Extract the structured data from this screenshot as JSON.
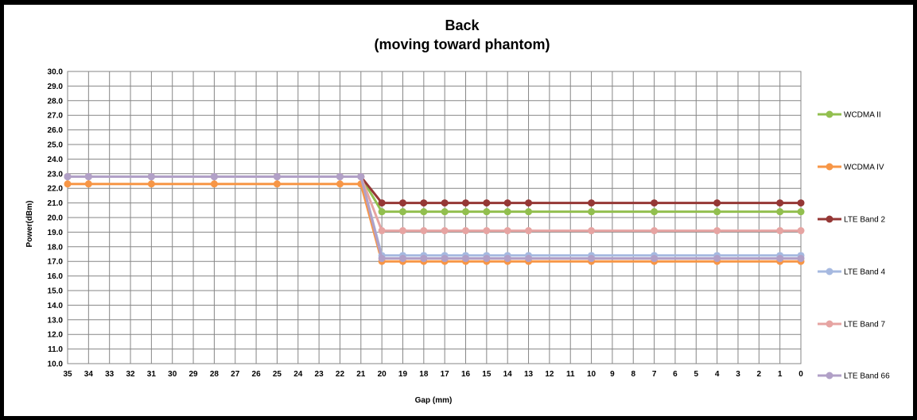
{
  "chart_data": {
    "type": "line",
    "title_line1": "Back",
    "title_line2": "(moving toward phantom)",
    "xlabel": "Gap (mm)",
    "ylabel": "Power(dBm)",
    "x_ticks": [
      35,
      34,
      33,
      32,
      31,
      30,
      29,
      28,
      27,
      26,
      25,
      24,
      23,
      22,
      21,
      20,
      19,
      18,
      17,
      16,
      15,
      14,
      13,
      12,
      11,
      10,
      9,
      8,
      7,
      6,
      5,
      4,
      3,
      2,
      1,
      0
    ],
    "x_reversed": true,
    "ylim": [
      10.0,
      30.0
    ],
    "y_step": 1.0,
    "grid": true,
    "legend_position": "right",
    "x": [
      35,
      34,
      31,
      28,
      25,
      22,
      21,
      20,
      19,
      18,
      17,
      16,
      15,
      14,
      13,
      10,
      7,
      4,
      1,
      0
    ],
    "series": [
      {
        "name": "WCDMA II",
        "color": "#92bf4f",
        "values": [
          22.8,
          22.8,
          22.8,
          22.8,
          22.8,
          22.8,
          22.8,
          20.4,
          20.4,
          20.4,
          20.4,
          20.4,
          20.4,
          20.4,
          20.4,
          20.4,
          20.4,
          20.4,
          20.4,
          20.4
        ]
      },
      {
        "name": "WCDMA IV",
        "color": "#f79646",
        "values": [
          22.3,
          22.3,
          22.3,
          22.3,
          22.3,
          22.3,
          22.3,
          17.0,
          17.0,
          17.0,
          17.0,
          17.0,
          17.0,
          17.0,
          17.0,
          17.0,
          17.0,
          17.0,
          17.0,
          17.0
        ]
      },
      {
        "name": "LTE Band 2",
        "color": "#953735",
        "values": [
          22.8,
          22.8,
          22.8,
          22.8,
          22.8,
          22.8,
          22.8,
          21.0,
          21.0,
          21.0,
          21.0,
          21.0,
          21.0,
          21.0,
          21.0,
          21.0,
          21.0,
          21.0,
          21.0,
          21.0
        ]
      },
      {
        "name": "LTE Band 4",
        "color": "#a6b9e0",
        "values": [
          22.8,
          22.8,
          22.8,
          22.8,
          22.8,
          22.8,
          22.8,
          17.4,
          17.4,
          17.4,
          17.4,
          17.4,
          17.4,
          17.4,
          17.4,
          17.4,
          17.4,
          17.4,
          17.4,
          17.4
        ]
      },
      {
        "name": "LTE Band 7",
        "color": "#e6a4a2",
        "values": [
          22.8,
          22.8,
          22.8,
          22.8,
          22.8,
          22.8,
          22.8,
          19.1,
          19.1,
          19.1,
          19.1,
          19.1,
          19.1,
          19.1,
          19.1,
          19.1,
          19.1,
          19.1,
          19.1,
          19.1
        ]
      },
      {
        "name": "LTE Band 66",
        "color": "#b1a0c7",
        "values": [
          22.8,
          22.8,
          22.8,
          22.8,
          22.8,
          22.8,
          22.8,
          17.2,
          17.2,
          17.2,
          17.2,
          17.2,
          17.2,
          17.2,
          17.2,
          17.2,
          17.2,
          17.2,
          17.2,
          17.2
        ]
      }
    ]
  }
}
